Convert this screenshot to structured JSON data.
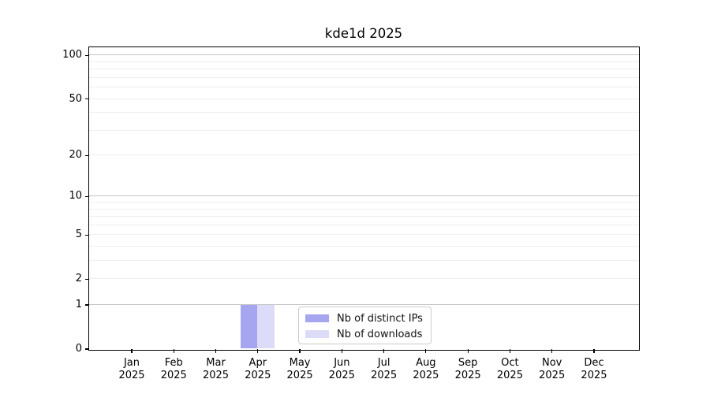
{
  "chart_data": {
    "type": "bar",
    "title": "kde1d 2025",
    "year": "2025",
    "categories": [
      "Jan",
      "Feb",
      "Mar",
      "Apr",
      "May",
      "Jun",
      "Jul",
      "Aug",
      "Sep",
      "Oct",
      "Nov",
      "Dec"
    ],
    "series": [
      {
        "name": "Nb of distinct IPs",
        "color": "#a5a5f0",
        "values": [
          0,
          0,
          0,
          1,
          0,
          0,
          0,
          0,
          0,
          0,
          0,
          0
        ]
      },
      {
        "name": "Nb of downloads",
        "color": "#dcdcf8",
        "values": [
          0,
          0,
          0,
          1,
          0,
          0,
          0,
          0,
          0,
          0,
          0,
          0
        ]
      }
    ],
    "y_axis": {
      "scale": "log1p",
      "ylim": [
        0,
        114
      ],
      "tick_values": [
        100,
        50,
        20,
        10,
        5,
        2,
        1,
        0
      ],
      "gridline_values": [
        1,
        2,
        3,
        4,
        5,
        6,
        7,
        8,
        9,
        10,
        20,
        30,
        40,
        50,
        60,
        70,
        80,
        90,
        100
      ],
      "major_gridline_values": [
        1,
        10,
        100
      ]
    },
    "legend": {
      "position": "lower center"
    },
    "grid": true,
    "colors": {
      "background": "#ffffff",
      "axis": "#000000",
      "grid_major": "#c6c6c6",
      "grid_minor": "#efefef",
      "legend_border": "#cccccc",
      "text": "#000000"
    }
  }
}
